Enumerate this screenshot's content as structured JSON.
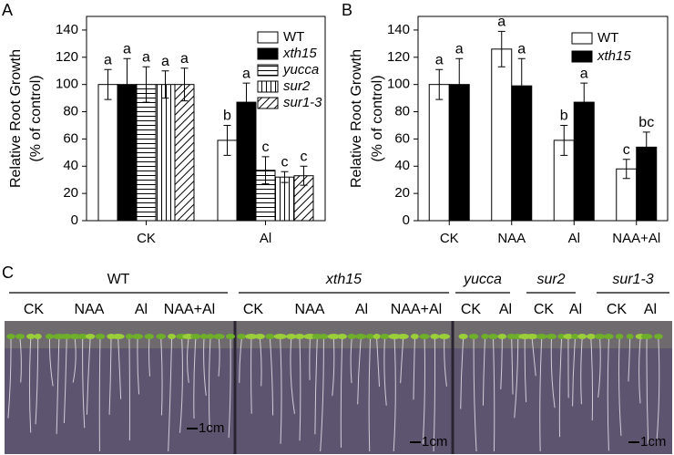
{
  "chart_data": [
    {
      "type": "bar",
      "panel": "A",
      "y_label": [
        "Relative Root Growth",
        "(% of control)"
      ],
      "categories": [
        "CK",
        "Al"
      ],
      "series": [
        {
          "name": "WT",
          "color": "#ffffff",
          "pattern": "solid",
          "values": [
            100,
            59
          ],
          "errors": [
            11,
            11
          ],
          "letters": [
            "a",
            "b"
          ]
        },
        {
          "name": "xth15",
          "color": "#000000",
          "pattern": "solid",
          "values": [
            100,
            87
          ],
          "errors": [
            19,
            14
          ],
          "letters": [
            "a",
            "a"
          ]
        },
        {
          "name": "yucca",
          "color": "#000000",
          "pattern": "horizontal",
          "values": [
            100,
            37
          ],
          "errors": [
            13,
            10
          ],
          "letters": [
            "a",
            "c"
          ]
        },
        {
          "name": "sur2",
          "color": "#000000",
          "pattern": "vertical",
          "values": [
            100,
            32
          ],
          "errors": [
            10,
            4
          ],
          "letters": [
            "a",
            "c"
          ]
        },
        {
          "name": "sur1-3",
          "color": "#000000",
          "pattern": "diagonal",
          "values": [
            100,
            33
          ],
          "errors": [
            12,
            7
          ],
          "letters": [
            "a",
            "c"
          ]
        }
      ],
      "ylim": [
        0,
        150
      ],
      "yticks": [
        0,
        20,
        40,
        60,
        80,
        100,
        120,
        140
      ],
      "legend": "upper right"
    },
    {
      "type": "bar",
      "panel": "B",
      "y_label": [
        "Relative Root Growth",
        "(% of control)"
      ],
      "categories": [
        "CK",
        "NAA",
        "Al",
        "NAA+Al"
      ],
      "series": [
        {
          "name": "WT",
          "color": "#ffffff",
          "pattern": "solid",
          "values": [
            100,
            126,
            59,
            38
          ],
          "errors": [
            11,
            13,
            11,
            7
          ],
          "letters": [
            "a",
            "a",
            "b",
            "c"
          ]
        },
        {
          "name": "xth15",
          "color": "#000000",
          "pattern": "solid",
          "values": [
            100,
            99,
            87,
            54
          ],
          "errors": [
            19,
            20,
            14,
            11
          ],
          "letters": [
            "a",
            "a",
            "a",
            "bc"
          ]
        }
      ],
      "ylim": [
        0,
        150
      ],
      "yticks": [
        0,
        20,
        40,
        60,
        80,
        100,
        120,
        140
      ],
      "legend": "upper right"
    }
  ],
  "photo_panel": {
    "panel": "C",
    "groups": [
      {
        "name": "WT",
        "treatments": [
          "CK",
          "NAA",
          "Al",
          "NAA+Al"
        ]
      },
      {
        "name": "xth15",
        "treatments": [
          "CK",
          "NAA",
          "Al",
          "NAA+Al"
        ]
      },
      {
        "name": "yucca",
        "treatments": [
          "CK",
          "Al"
        ]
      },
      {
        "name": "sur2",
        "treatments": [
          "CK",
          "Al"
        ]
      },
      {
        "name": "sur1-3",
        "treatments": [
          "CK",
          "Al"
        ]
      }
    ],
    "scale_bars": [
      "1cm",
      "1cm",
      "1cm"
    ]
  }
}
